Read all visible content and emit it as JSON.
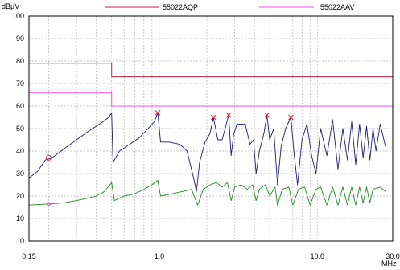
{
  "chart_data": {
    "type": "line",
    "xscale": "log",
    "xlim": [
      0.15,
      30
    ],
    "ylim": [
      0,
      100
    ],
    "ylabel": "dBµV",
    "xlabel": "MHz",
    "y_ticks": [
      0,
      10,
      20,
      30,
      40,
      50,
      60,
      70,
      80,
      90,
      100
    ],
    "x_tick_labels": [
      {
        "value": 0.15,
        "label": "0.15"
      },
      {
        "value": 1.0,
        "label": "1.0"
      },
      {
        "value": 10.0,
        "label": "10.0"
      },
      {
        "value": 30.0,
        "label": "30.0"
      }
    ],
    "grid": true,
    "legend": {
      "placement": "top",
      "entries": [
        {
          "name": "55022AQP",
          "color": "#c81e3c"
        },
        {
          "name": "55022AAV",
          "color": "#ff44ff"
        }
      ]
    },
    "limits": [
      {
        "name": "55022AQP",
        "color": "#c81e3c",
        "segments": [
          {
            "x": [
              0.15,
              0.5
            ],
            "y": 79
          },
          {
            "x": [
              0.5,
              30
            ],
            "y": 73
          }
        ]
      },
      {
        "name": "55022AAV",
        "color": "#ff44ff",
        "segments": [
          {
            "x": [
              0.15,
              0.5
            ],
            "y": 66
          },
          {
            "x": [
              0.5,
              30
            ],
            "y": 60
          }
        ]
      }
    ],
    "series": [
      {
        "color": "#1a1a7a",
        "points": [
          [
            0.15,
            28
          ],
          [
            0.17,
            31
          ],
          [
            0.19,
            36
          ],
          [
            0.21,
            37
          ],
          [
            0.25,
            41
          ],
          [
            0.3,
            45
          ],
          [
            0.36,
            49
          ],
          [
            0.42,
            52
          ],
          [
            0.48,
            55
          ],
          [
            0.5,
            57
          ],
          [
            0.51,
            35
          ],
          [
            0.56,
            40
          ],
          [
            0.65,
            43
          ],
          [
            0.75,
            46
          ],
          [
            0.85,
            50
          ],
          [
            0.93,
            53
          ],
          [
            0.98,
            57
          ],
          [
            1.02,
            44
          ],
          [
            1.15,
            44
          ],
          [
            1.35,
            43
          ],
          [
            1.5,
            40
          ],
          [
            1.65,
            28
          ],
          [
            1.72,
            22
          ],
          [
            1.8,
            35
          ],
          [
            1.95,
            44
          ],
          [
            2.1,
            48
          ],
          [
            2.2,
            55
          ],
          [
            2.35,
            45
          ],
          [
            2.5,
            45
          ],
          [
            2.75,
            56
          ],
          [
            2.85,
            38
          ],
          [
            2.95,
            47
          ],
          [
            3.1,
            52
          ],
          [
            3.5,
            52
          ],
          [
            3.75,
            43
          ],
          [
            3.95,
            45
          ],
          [
            4.1,
            30
          ],
          [
            4.3,
            40
          ],
          [
            4.6,
            48
          ],
          [
            4.8,
            56
          ],
          [
            5.0,
            45
          ],
          [
            5.3,
            50
          ],
          [
            5.6,
            25
          ],
          [
            5.9,
            42
          ],
          [
            6.3,
            50
          ],
          [
            6.8,
            55
          ],
          [
            7.1,
            40
          ],
          [
            7.5,
            25
          ],
          [
            8.0,
            45
          ],
          [
            8.6,
            52
          ],
          [
            9.2,
            38
          ],
          [
            9.8,
            30
          ],
          [
            10.5,
            50
          ],
          [
            11.5,
            38
          ],
          [
            12.5,
            54
          ],
          [
            13.5,
            32
          ],
          [
            14.5,
            50
          ],
          [
            15.5,
            36
          ],
          [
            16.5,
            53
          ],
          [
            17.5,
            34
          ],
          [
            18.5,
            52
          ],
          [
            19.5,
            37
          ],
          [
            20.5,
            51
          ],
          [
            21.5,
            36
          ],
          [
            22.5,
            50
          ],
          [
            23.5,
            40
          ],
          [
            25.0,
            52
          ],
          [
            27.0,
            42
          ]
        ]
      },
      {
        "color": "#1e8c1e",
        "points": [
          [
            0.15,
            16
          ],
          [
            0.2,
            16.5
          ],
          [
            0.25,
            17
          ],
          [
            0.3,
            18
          ],
          [
            0.35,
            19
          ],
          [
            0.4,
            20
          ],
          [
            0.45,
            22
          ],
          [
            0.5,
            26
          ],
          [
            0.52,
            18
          ],
          [
            0.6,
            20
          ],
          [
            0.7,
            21
          ],
          [
            0.8,
            23
          ],
          [
            0.9,
            25
          ],
          [
            0.98,
            27
          ],
          [
            1.02,
            20
          ],
          [
            1.2,
            21
          ],
          [
            1.4,
            22
          ],
          [
            1.6,
            23
          ],
          [
            1.75,
            16
          ],
          [
            1.9,
            23
          ],
          [
            2.1,
            25
          ],
          [
            2.3,
            26
          ],
          [
            2.5,
            24
          ],
          [
            2.7,
            26
          ],
          [
            2.85,
            18
          ],
          [
            3.0,
            24
          ],
          [
            3.3,
            25
          ],
          [
            3.6,
            23
          ],
          [
            3.9,
            25
          ],
          [
            4.1,
            18
          ],
          [
            4.3,
            23
          ],
          [
            4.7,
            25
          ],
          [
            5.0,
            20
          ],
          [
            5.4,
            24
          ],
          [
            5.6,
            16
          ],
          [
            6.0,
            23
          ],
          [
            6.6,
            24
          ],
          [
            7.0,
            16
          ],
          [
            7.6,
            23
          ],
          [
            8.3,
            24
          ],
          [
            9.0,
            16
          ],
          [
            9.8,
            23
          ],
          [
            10.5,
            24
          ],
          [
            11.5,
            16
          ],
          [
            12.5,
            24
          ],
          [
            13.5,
            16
          ],
          [
            14.5,
            24
          ],
          [
            15.5,
            16
          ],
          [
            16.5,
            24
          ],
          [
            17.5,
            16
          ],
          [
            18.5,
            24
          ],
          [
            19.5,
            17
          ],
          [
            20.5,
            24
          ],
          [
            21.5,
            17
          ],
          [
            22.5,
            23
          ],
          [
            25.0,
            24
          ],
          [
            27.0,
            22
          ]
        ]
      }
    ],
    "markers": [
      {
        "type": "x",
        "color": "#ff2020",
        "points": [
          [
            0.98,
            57
          ],
          [
            2.2,
            55
          ],
          [
            2.75,
            56
          ],
          [
            4.8,
            56
          ],
          [
            6.8,
            55
          ]
        ]
      },
      {
        "type": "circle",
        "color": "#ff2020",
        "points": [
          [
            0.2,
            37
          ]
        ]
      },
      {
        "type": "diamond",
        "color": "#ff44ff",
        "points": [
          [
            0.2,
            16.5
          ]
        ]
      }
    ]
  }
}
